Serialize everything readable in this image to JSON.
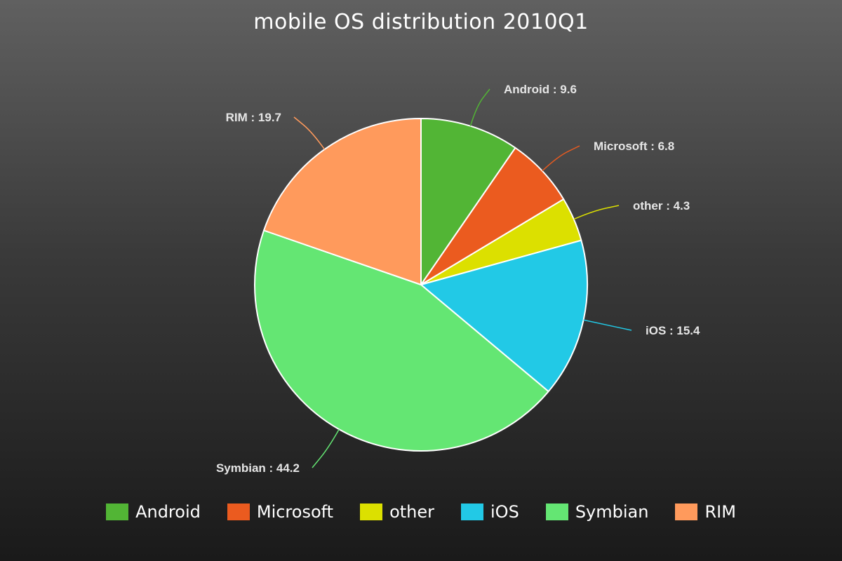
{
  "chart_data": {
    "type": "pie",
    "title": "mobile OS distribution 2010Q1",
    "slices": [
      {
        "name": "Android",
        "value": 9.6,
        "color": "#52b535",
        "label": "Android : 9.6"
      },
      {
        "name": "Microsoft",
        "value": 6.8,
        "color": "#eb5b1f",
        "label": "Microsoft : 6.8"
      },
      {
        "name": "other",
        "value": 4.3,
        "color": "#dce000",
        "label": "other : 4.3"
      },
      {
        "name": "iOS",
        "value": 15.4,
        "color": "#22c9e6",
        "label": "iOS : 15.4"
      },
      {
        "name": "Symbian",
        "value": 44.2,
        "color": "#64e673",
        "label": "Symbian : 44.2"
      },
      {
        "name": "RIM",
        "value": 19.7,
        "color": "#ff9a5c",
        "label": "RIM : 19.7"
      }
    ],
    "legend": {
      "placement": "bottom",
      "items": [
        "Android",
        "Microsoft",
        "other",
        "iOS",
        "Symbian",
        "RIM"
      ]
    }
  }
}
